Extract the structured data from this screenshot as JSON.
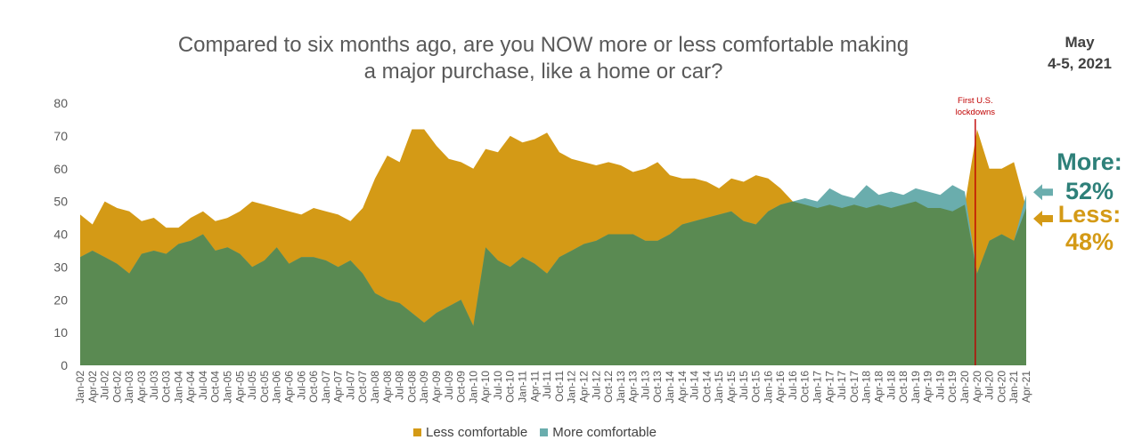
{
  "title_line1": "Compared to six months ago, are you NOW more or less comfortable making",
  "title_line2": "a major purchase, like a home or car?",
  "date_line1": "May",
  "date_line2": "4-5, 2021",
  "callout_more_label": "More:",
  "callout_more_value": "52%",
  "callout_less_label": "Less:",
  "callout_less_value": "48%",
  "annotation_line1": "First U.S.",
  "annotation_line2": "lockdowns",
  "colors": {
    "less": "#d49a16",
    "more": "#6aadad",
    "overlap": "#5a8a52",
    "marker": "#c00000",
    "more_text": "#2e8079",
    "less_text": "#d49a16"
  },
  "chart_data": {
    "type": "area",
    "title": "Compared to six months ago, are you NOW more or less comfortable making a major purchase, like a home or car?",
    "ylim": [
      0,
      80
    ],
    "yticks": [
      0,
      10,
      20,
      30,
      40,
      50,
      60,
      70,
      80
    ],
    "x_start": "Jan-02",
    "x_end": "Apr-21",
    "x_labels": [
      "Jan-02",
      "Apr-02",
      "Jul-02",
      "Oct-02",
      "Jan-03",
      "Apr-03",
      "Jul-03",
      "Oct-03",
      "Jan-04",
      "Apr-04",
      "Jul-04",
      "Oct-04",
      "Jan-05",
      "Apr-05",
      "Jul-05",
      "Oct-05",
      "Jan-06",
      "Apr-06",
      "Jul-06",
      "Oct-06",
      "Jan-07",
      "Apr-07",
      "Jul-07",
      "Oct-07",
      "Jan-08",
      "Apr-08",
      "Jul-08",
      "Oct-08",
      "Jan-09",
      "Apr-09",
      "Jul-09",
      "Oct-09",
      "Jan-10",
      "Apr-10",
      "Jul-10",
      "Oct-10",
      "Jan-11",
      "Apr-11",
      "Jul-11",
      "Oct-11",
      "Jan-12",
      "Apr-12",
      "Jul-12",
      "Oct-12",
      "Jan-13",
      "Apr-13",
      "Jul-13",
      "Oct-13",
      "Jan-14",
      "Apr-14",
      "Jul-14",
      "Oct-14",
      "Jan-15",
      "Apr-15",
      "Jul-15",
      "Oct-15",
      "Jan-16",
      "Apr-16",
      "Jul-16",
      "Oct-16",
      "Jan-17",
      "Apr-17",
      "Jul-17",
      "Oct-17",
      "Jan-18",
      "Apr-18",
      "Jul-18",
      "Oct-18",
      "Jan-19",
      "Apr-19",
      "Jul-19",
      "Oct-19",
      "Jan-20",
      "Apr-20",
      "Jul-20",
      "Oct-20",
      "Jan-21",
      "Apr-21"
    ],
    "annotation": {
      "x": "Apr-20",
      "text": "First U.S. lockdowns"
    },
    "series": [
      {
        "name": "Less comfortable",
        "key": "less",
        "x": [
          "Jan-02",
          "Apr-02",
          "Jul-02",
          "Oct-02",
          "Jan-03",
          "Apr-03",
          "Jul-03",
          "Oct-03",
          "Jan-04",
          "Apr-04",
          "Jul-04",
          "Oct-04",
          "Jan-05",
          "Apr-05",
          "Jul-05",
          "Oct-05",
          "Jan-06",
          "Apr-06",
          "Jul-06",
          "Oct-06",
          "Jan-07",
          "Apr-07",
          "Jul-07",
          "Oct-07",
          "Jan-08",
          "Apr-08",
          "Jul-08",
          "Oct-08",
          "Jan-09",
          "Apr-09",
          "Jul-09",
          "Oct-09",
          "Jan-10",
          "Apr-10",
          "Jul-10",
          "Oct-10",
          "Jan-11",
          "Apr-11",
          "Jul-11",
          "Oct-11",
          "Jan-12",
          "Apr-12",
          "Jul-12",
          "Oct-12",
          "Jan-13",
          "Apr-13",
          "Jul-13",
          "Oct-13",
          "Jan-14",
          "Apr-14",
          "Jul-14",
          "Oct-14",
          "Jan-15",
          "Apr-15",
          "Jul-15",
          "Oct-15",
          "Jan-16",
          "Apr-16",
          "Jul-16",
          "Oct-16",
          "Jan-17",
          "Apr-17",
          "Jul-17",
          "Oct-17",
          "Jan-18",
          "Apr-18",
          "Jul-18",
          "Oct-18",
          "Jan-19",
          "Apr-19",
          "Jul-19",
          "Oct-19",
          "Jan-20",
          "Apr-20",
          "Jul-20",
          "Oct-20",
          "Jan-21",
          "Apr-21"
        ],
        "values": [
          46,
          43,
          50,
          48,
          47,
          44,
          45,
          42,
          42,
          45,
          47,
          44,
          45,
          47,
          50,
          49,
          48,
          47,
          46,
          48,
          47,
          46,
          44,
          48,
          57,
          64,
          62,
          72,
          72,
          67,
          63,
          62,
          60,
          66,
          65,
          70,
          68,
          69,
          71,
          65,
          63,
          62,
          61,
          62,
          61,
          59,
          60,
          62,
          58,
          57,
          57,
          56,
          54,
          57,
          56,
          58,
          57,
          54,
          50,
          49,
          48,
          49,
          48,
          49,
          48,
          49,
          48,
          49,
          50,
          48,
          48,
          47,
          49,
          72,
          60,
          60,
          62,
          48
        ]
      },
      {
        "name": "More comfortable",
        "key": "more",
        "x": [
          "Jan-02",
          "Apr-02",
          "Jul-02",
          "Oct-02",
          "Jan-03",
          "Apr-03",
          "Jul-03",
          "Oct-03",
          "Jan-04",
          "Apr-04",
          "Jul-04",
          "Oct-04",
          "Jan-05",
          "Apr-05",
          "Jul-05",
          "Oct-05",
          "Jan-06",
          "Apr-06",
          "Jul-06",
          "Oct-06",
          "Jan-07",
          "Apr-07",
          "Jul-07",
          "Oct-07",
          "Jan-08",
          "Apr-08",
          "Jul-08",
          "Oct-08",
          "Jan-09",
          "Apr-09",
          "Jul-09",
          "Oct-09",
          "Jan-10",
          "Apr-10",
          "Jul-10",
          "Oct-10",
          "Jan-11",
          "Apr-11",
          "Jul-11",
          "Oct-11",
          "Jan-12",
          "Apr-12",
          "Jul-12",
          "Oct-12",
          "Jan-13",
          "Apr-13",
          "Jul-13",
          "Oct-13",
          "Jan-14",
          "Apr-14",
          "Jul-14",
          "Oct-14",
          "Jan-15",
          "Apr-15",
          "Jul-15",
          "Oct-15",
          "Jan-16",
          "Apr-16",
          "Jul-16",
          "Oct-16",
          "Jan-17",
          "Apr-17",
          "Jul-17",
          "Oct-17",
          "Jan-18",
          "Apr-18",
          "Jul-18",
          "Oct-18",
          "Jan-19",
          "Apr-19",
          "Jul-19",
          "Oct-19",
          "Jan-20",
          "Apr-20",
          "Jul-20",
          "Oct-20",
          "Jan-21",
          "Apr-21"
        ],
        "values": [
          33,
          35,
          33,
          31,
          28,
          34,
          35,
          34,
          37,
          38,
          40,
          35,
          36,
          34,
          30,
          32,
          36,
          31,
          33,
          33,
          32,
          30,
          32,
          28,
          22,
          20,
          19,
          16,
          13,
          16,
          18,
          20,
          12,
          36,
          32,
          30,
          33,
          31,
          28,
          33,
          35,
          37,
          38,
          40,
          40,
          40,
          38,
          38,
          40,
          43,
          44,
          45,
          46,
          47,
          44,
          43,
          47,
          49,
          50,
          51,
          50,
          54,
          52,
          51,
          55,
          52,
          53,
          52,
          54,
          53,
          52,
          55,
          53,
          28,
          38,
          40,
          38,
          52
        ]
      }
    ],
    "legend": {
      "position": "bottom",
      "entries": [
        "Less comfortable",
        "More comfortable"
      ]
    },
    "grid": false
  }
}
